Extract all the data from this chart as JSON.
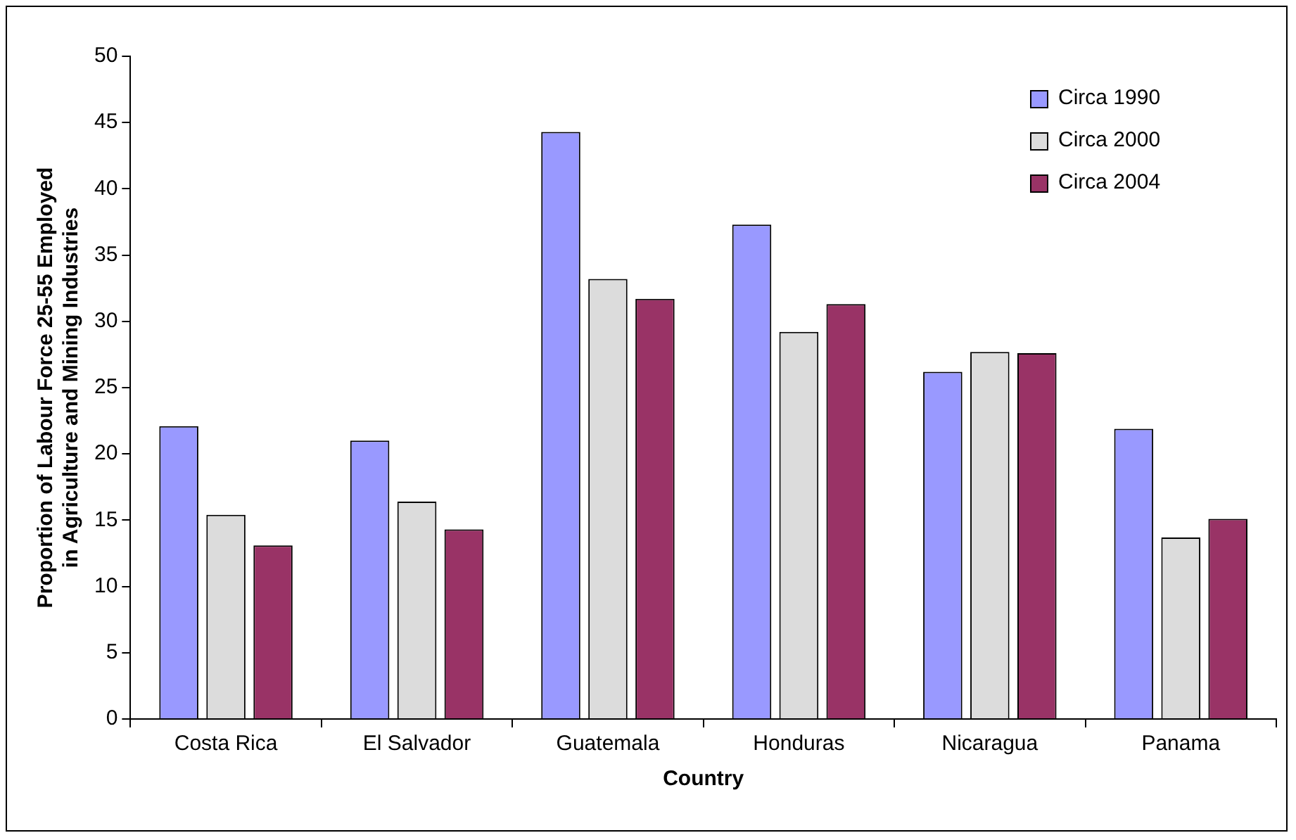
{
  "chart_data": {
    "type": "bar",
    "xlabel": "Country",
    "ylabel": "Proportion of Labour Force 25-55 Employed in Agriculture and Mining Industries",
    "categories": [
      "Costa Rica",
      "El Salvador",
      "Guatemala",
      "Honduras",
      "Nicaragua",
      "Panama"
    ],
    "series": [
      {
        "name": "Circa 1990",
        "color": "#9999ff",
        "values": [
          22.1,
          21.0,
          44.3,
          37.3,
          26.2,
          21.9
        ]
      },
      {
        "name": "Circa 2000",
        "color": "#dcdcdc",
        "values": [
          15.4,
          16.4,
          33.2,
          29.2,
          27.7,
          13.7
        ]
      },
      {
        "name": "Circa 2004",
        "color": "#993366",
        "values": [
          13.1,
          14.3,
          31.7,
          31.3,
          27.6,
          15.1
        ]
      }
    ],
    "ylim": [
      0,
      50
    ],
    "yticks": [
      0,
      5,
      10,
      15,
      20,
      25,
      30,
      35,
      40,
      45,
      50
    ],
    "grid": false,
    "legend": "top right"
  }
}
